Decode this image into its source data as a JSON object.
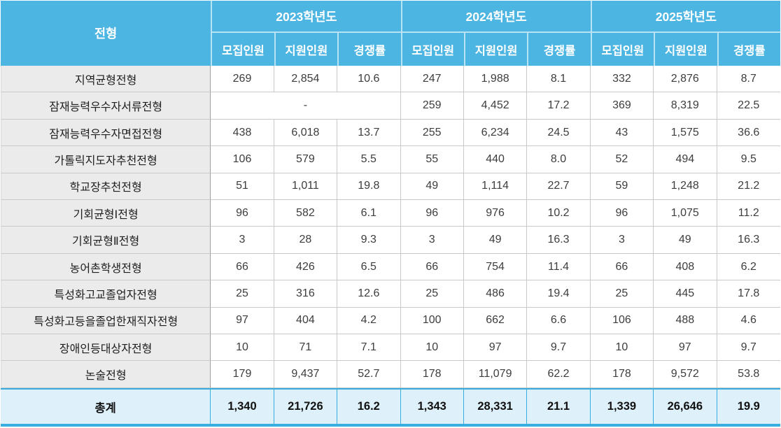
{
  "colors": {
    "header_bg": "#4DB5E2",
    "header_text": "#FFFFFF",
    "header_divider": "#B9E3F4",
    "label_col_bg": "#EBEBEB",
    "label_col_border": "#9E9E9E",
    "grid_line": "#C9C9C9",
    "body_text": "#3D3D3D",
    "total_bg": "#DEF0F9",
    "total_border": "#39AEDE"
  },
  "table": {
    "program_header": "전형",
    "years": [
      "2023학년도",
      "2024학년도",
      "2025학년도"
    ],
    "subcolumns": [
      "모집인원",
      "지원인원",
      "경쟁률"
    ],
    "rows": [
      {
        "label": "지역균형전형",
        "c2023": [
          "269",
          "2,854",
          "10.6"
        ],
        "c2024": [
          "247",
          "1,988",
          "8.1"
        ],
        "c2025": [
          "332",
          "2,876",
          "8.7"
        ]
      },
      {
        "label": "잠재능력우수자서류전형",
        "c2023_merged": "-",
        "c2024": [
          "259",
          "4,452",
          "17.2"
        ],
        "c2025": [
          "369",
          "8,319",
          "22.5"
        ]
      },
      {
        "label": "잠재능력우수자면접전형",
        "c2023": [
          "438",
          "6,018",
          "13.7"
        ],
        "c2024": [
          "255",
          "6,234",
          "24.5"
        ],
        "c2025": [
          "43",
          "1,575",
          "36.6"
        ]
      },
      {
        "label": "가톨릭지도자추천전형",
        "c2023": [
          "106",
          "579",
          "5.5"
        ],
        "c2024": [
          "55",
          "440",
          "8.0"
        ],
        "c2025": [
          "52",
          "494",
          "9.5"
        ]
      },
      {
        "label": "학교장추천전형",
        "c2023": [
          "51",
          "1,011",
          "19.8"
        ],
        "c2024": [
          "49",
          "1,114",
          "22.7"
        ],
        "c2025": [
          "59",
          "1,248",
          "21.2"
        ]
      },
      {
        "label": "기회균형Ⅰ전형",
        "c2023": [
          "96",
          "582",
          "6.1"
        ],
        "c2024": [
          "96",
          "976",
          "10.2"
        ],
        "c2025": [
          "96",
          "1,075",
          "11.2"
        ]
      },
      {
        "label": "기회균형Ⅱ전형",
        "c2023": [
          "3",
          "28",
          "9.3"
        ],
        "c2024": [
          "3",
          "49",
          "16.3"
        ],
        "c2025": [
          "3",
          "49",
          "16.3"
        ]
      },
      {
        "label": "농어촌학생전형",
        "c2023": [
          "66",
          "426",
          "6.5"
        ],
        "c2024": [
          "66",
          "754",
          "11.4"
        ],
        "c2025": [
          "66",
          "408",
          "6.2"
        ]
      },
      {
        "label": "특성화고교졸업자전형",
        "c2023": [
          "25",
          "316",
          "12.6"
        ],
        "c2024": [
          "25",
          "486",
          "19.4"
        ],
        "c2025": [
          "25",
          "445",
          "17.8"
        ]
      },
      {
        "label": "특성화고등을졸업한재직자전형",
        "c2023": [
          "97",
          "404",
          "4.2"
        ],
        "c2024": [
          "100",
          "662",
          "6.6"
        ],
        "c2025": [
          "106",
          "488",
          "4.6"
        ]
      },
      {
        "label": "장애인등대상자전형",
        "c2023": [
          "10",
          "71",
          "7.1"
        ],
        "c2024": [
          "10",
          "97",
          "9.7"
        ],
        "c2025": [
          "10",
          "97",
          "9.7"
        ]
      },
      {
        "label": "논술전형",
        "c2023": [
          "179",
          "9,437",
          "52.7"
        ],
        "c2024": [
          "178",
          "11,079",
          "62.2"
        ],
        "c2025": [
          "178",
          "9,572",
          "53.8"
        ]
      }
    ],
    "total": {
      "label": "총계",
      "cells": [
        "1,340",
        "21,726",
        "16.2",
        "1,343",
        "28,331",
        "21.1",
        "1,339",
        "26,646",
        "19.9"
      ]
    }
  }
}
